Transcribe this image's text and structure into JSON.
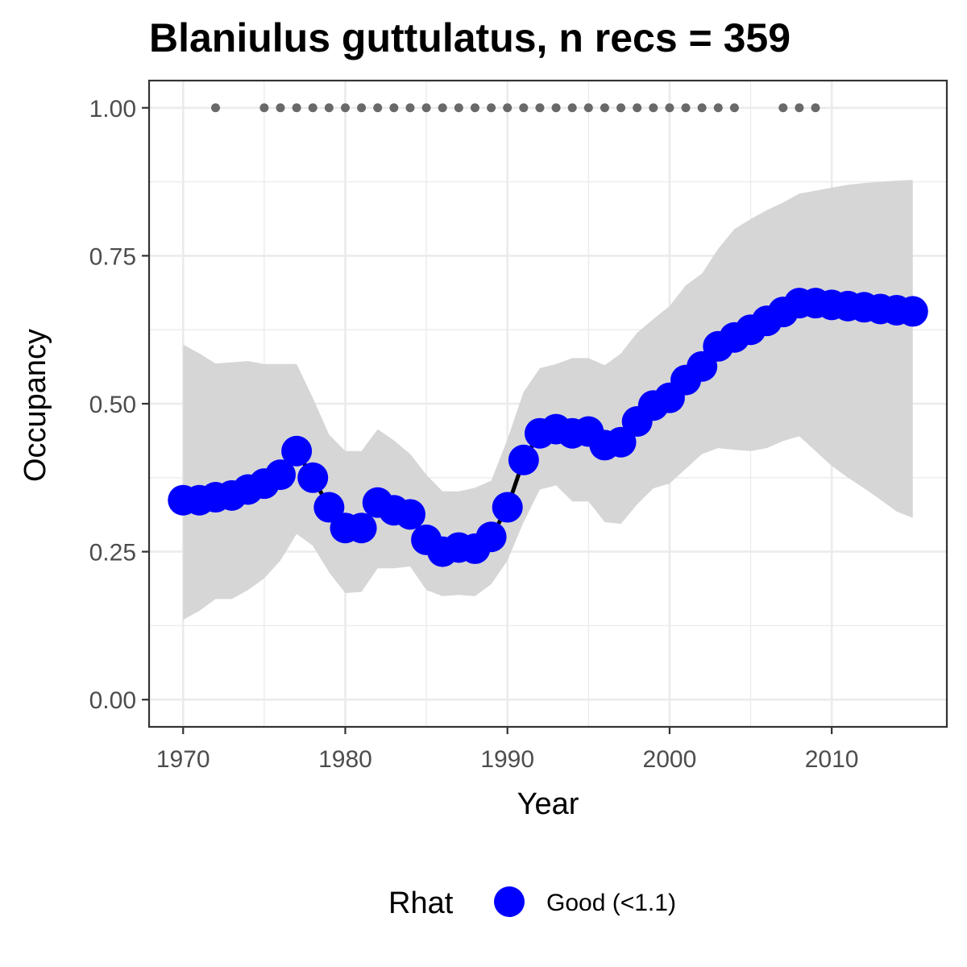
{
  "chart_data": {
    "type": "line",
    "title": "Blaniulus guttulatus, n recs = 359",
    "xlabel": "Year",
    "ylabel": "Occupancy",
    "xlim": [
      1967.9,
      2017.1
    ],
    "ylim": [
      -0.046,
      1.046
    ],
    "x_ticks": [
      1970,
      1980,
      1990,
      2000,
      2010
    ],
    "x_tick_labels": [
      "1970",
      "1980",
      "1990",
      "2000",
      "2010"
    ],
    "y_ticks": [
      0,
      0.25,
      0.5,
      0.75,
      1
    ],
    "y_tick_labels": [
      "0.00",
      "0.25",
      "0.50",
      "0.75",
      "1.00"
    ],
    "grid": true,
    "legend": {
      "title": "Rhat",
      "position": "bottom",
      "entries": [
        "Good (<1.1)"
      ]
    },
    "colors": {
      "series": "#0000ff",
      "line": "#000000",
      "ribbon": "#d6d6d6",
      "record_dots": "#696969"
    },
    "series": [
      {
        "name": "Good (<1.1)",
        "x": [
          1970,
          1971,
          1972,
          1973,
          1974,
          1975,
          1976,
          1977,
          1978,
          1979,
          1980,
          1981,
          1982,
          1983,
          1984,
          1985,
          1986,
          1987,
          1988,
          1989,
          1990,
          1991,
          1992,
          1993,
          1994,
          1995,
          1996,
          1997,
          1998,
          1999,
          2000,
          2001,
          2002,
          2003,
          2004,
          2005,
          2006,
          2007,
          2008,
          2009,
          2010,
          2011,
          2012,
          2013,
          2014,
          2015
        ],
        "values": [
          0.337,
          0.337,
          0.342,
          0.345,
          0.355,
          0.365,
          0.38,
          0.42,
          0.375,
          0.325,
          0.29,
          0.29,
          0.333,
          0.32,
          0.313,
          0.27,
          0.25,
          0.257,
          0.255,
          0.275,
          0.325,
          0.405,
          0.45,
          0.457,
          0.45,
          0.453,
          0.43,
          0.435,
          0.47,
          0.497,
          0.51,
          0.54,
          0.563,
          0.597,
          0.612,
          0.625,
          0.64,
          0.655,
          0.67,
          0.67,
          0.667,
          0.665,
          0.663,
          0.66,
          0.658,
          0.656
        ],
        "lower": [
          0.135,
          0.15,
          0.17,
          0.17,
          0.185,
          0.205,
          0.235,
          0.28,
          0.26,
          0.215,
          0.18,
          0.182,
          0.222,
          0.222,
          0.225,
          0.185,
          0.175,
          0.177,
          0.175,
          0.195,
          0.235,
          0.3,
          0.355,
          0.362,
          0.335,
          0.335,
          0.3,
          0.297,
          0.33,
          0.357,
          0.365,
          0.39,
          0.415,
          0.425,
          0.422,
          0.42,
          0.425,
          0.437,
          0.445,
          0.42,
          0.395,
          0.375,
          0.357,
          0.338,
          0.318,
          0.307
        ],
        "upper": [
          0.6,
          0.585,
          0.568,
          0.57,
          0.572,
          0.567,
          0.567,
          0.567,
          0.51,
          0.448,
          0.42,
          0.42,
          0.457,
          0.438,
          0.415,
          0.38,
          0.352,
          0.352,
          0.358,
          0.37,
          0.44,
          0.52,
          0.56,
          0.567,
          0.577,
          0.577,
          0.565,
          0.585,
          0.62,
          0.643,
          0.665,
          0.7,
          0.72,
          0.762,
          0.795,
          0.812,
          0.827,
          0.84,
          0.855,
          0.86,
          0.865,
          0.87,
          0.873,
          0.875,
          0.877,
          0.878
        ]
      }
    ],
    "record_years": {
      "y": 1,
      "x": [
        1972,
        1975,
        1976,
        1977,
        1978,
        1979,
        1980,
        1981,
        1982,
        1983,
        1984,
        1985,
        1986,
        1987,
        1988,
        1989,
        1990,
        1991,
        1992,
        1993,
        1994,
        1995,
        1996,
        1997,
        1998,
        1999,
        2000,
        2001,
        2002,
        2003,
        2004,
        2007,
        2008,
        2009
      ]
    }
  }
}
